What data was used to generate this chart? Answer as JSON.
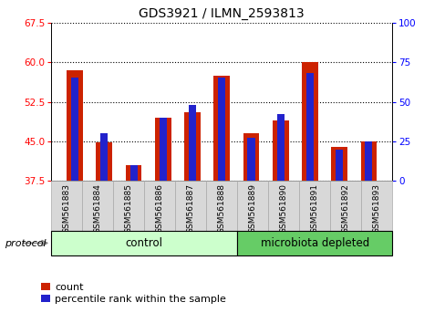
{
  "title": "GDS3921 / ILMN_2593813",
  "samples": [
    "GSM561883",
    "GSM561884",
    "GSM561885",
    "GSM561886",
    "GSM561887",
    "GSM561888",
    "GSM561889",
    "GSM561890",
    "GSM561891",
    "GSM561892",
    "GSM561893"
  ],
  "count_values": [
    58.5,
    44.8,
    40.5,
    49.5,
    50.5,
    57.5,
    46.5,
    49.0,
    60.0,
    44.0,
    45.0
  ],
  "percentile_values": [
    65,
    30,
    10,
    40,
    48,
    65,
    27,
    42,
    68,
    20,
    25
  ],
  "n_control": 6,
  "n_microbiota": 5,
  "ylim_left": [
    37.5,
    67.5
  ],
  "ylim_right": [
    0,
    100
  ],
  "yticks_left": [
    37.5,
    45.0,
    52.5,
    60.0,
    67.5
  ],
  "yticks_right": [
    0,
    25,
    50,
    75,
    100
  ],
  "count_color": "#cc2200",
  "percentile_color": "#2222cc",
  "control_color": "#ccffcc",
  "microbiota_color": "#66cc66",
  "bg_color": "#d8d8d8",
  "label_count": "count",
  "label_percentile": "percentile rank within the sample",
  "protocol_label": "protocol",
  "control_label": "control",
  "microbiota_label": "microbiota depleted",
  "title_fontsize": 10,
  "tick_fontsize": 7.5,
  "sample_fontsize": 6.5,
  "legend_fontsize": 8
}
